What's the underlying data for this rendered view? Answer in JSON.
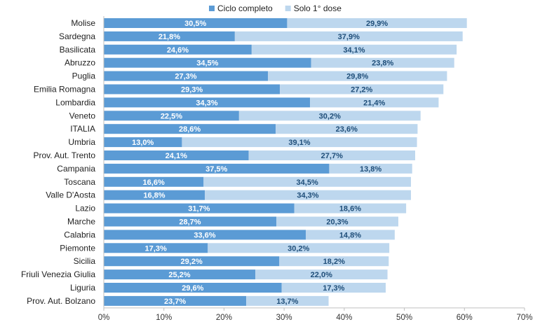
{
  "chart_data": {
    "type": "bar",
    "orientation": "horizontal",
    "stacked": true,
    "title": "",
    "xlabel": "",
    "ylabel": "",
    "xlim": [
      0,
      70
    ],
    "x_ticks": [
      "0%",
      "10%",
      "20%",
      "30%",
      "40%",
      "50%",
      "60%",
      "70%"
    ],
    "legend_position": "top",
    "grid": false,
    "categories": [
      "Molise",
      "Sardegna",
      "Basilicata",
      "Abruzzo",
      "Puglia",
      "Emilia Romagna",
      "Lombardia",
      "Veneto",
      "ITALIA",
      "Umbria",
      "Prov. Aut. Trento",
      "Campania",
      "Toscana",
      "Valle D'Aosta",
      "Lazio",
      "Marche",
      "Calabria",
      "Piemonte",
      "Sicilia",
      "Friuli Venezia Giulia",
      "Liguria",
      "Prov. Aut. Bolzano"
    ],
    "series": [
      {
        "name": "Ciclo completo",
        "color": "#5b9bd5",
        "values": [
          30.5,
          21.8,
          24.6,
          34.5,
          27.3,
          29.3,
          34.3,
          22.5,
          28.6,
          13.0,
          24.1,
          37.5,
          16.6,
          16.8,
          31.7,
          28.7,
          33.6,
          17.3,
          29.2,
          25.2,
          29.6,
          23.7
        ],
        "labels": [
          "30,5%",
          "21,8%",
          "24,6%",
          "34,5%",
          "27,3%",
          "29,3%",
          "34,3%",
          "22,5%",
          "28,6%",
          "13,0%",
          "24,1%",
          "37,5%",
          "16,6%",
          "16,8%",
          "31,7%",
          "28,7%",
          "33,6%",
          "17,3%",
          "29,2%",
          "25,2%",
          "29,6%",
          "23,7%"
        ]
      },
      {
        "name": "Solo 1° dose",
        "color": "#bdd7ee",
        "values": [
          29.9,
          37.9,
          34.1,
          23.8,
          29.8,
          27.2,
          21.4,
          30.2,
          23.6,
          39.1,
          27.7,
          13.8,
          34.5,
          34.3,
          18.6,
          20.3,
          14.8,
          30.2,
          18.2,
          22.0,
          17.3,
          13.7
        ],
        "labels": [
          "29,9%",
          "37,9%",
          "34,1%",
          "23,8%",
          "29,8%",
          "27,2%",
          "21,4%",
          "30,2%",
          "23,6%",
          "39,1%",
          "27,7%",
          "13,8%",
          "34,5%",
          "34,3%",
          "18,6%",
          "20,3%",
          "14,8%",
          "30,2%",
          "18,2%",
          "22,0%",
          "17,3%",
          "13,7%"
        ]
      }
    ]
  }
}
